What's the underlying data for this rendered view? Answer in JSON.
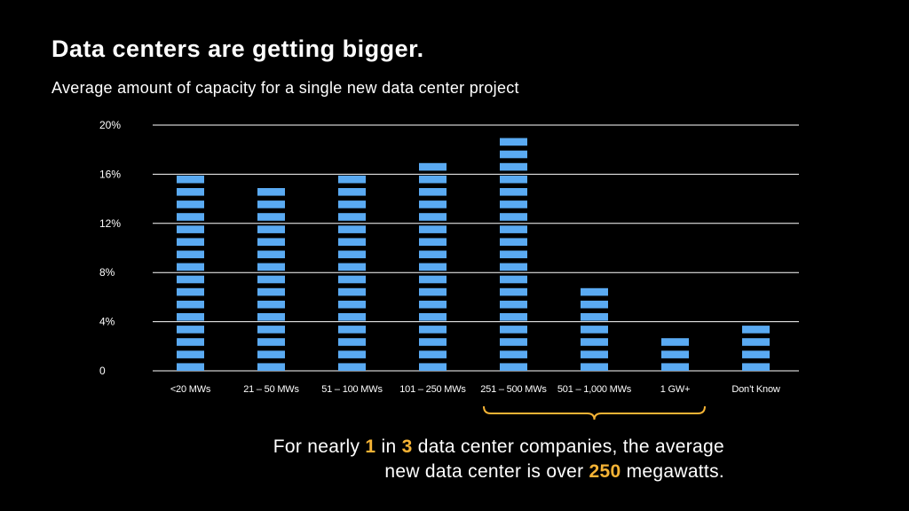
{
  "title": "Data centers are getting bigger.",
  "subtitle": "Average amount of capacity for a single new data center project",
  "colors": {
    "background": "#000000",
    "bar": "#5aaaf2",
    "gridline": "#ffffff",
    "highlight": "#f5b335",
    "text": "#ffffff"
  },
  "chart_data": {
    "type": "bar",
    "categories": [
      "<20 MWs",
      "21 – 50 MWs",
      "51 – 100 MWs",
      "101 – 250 MWs",
      "251 – 500 MWs",
      "501 – 1,000 MWs",
      "1 GW+",
      "Don’t Know"
    ],
    "values": [
      16,
      15,
      16,
      17,
      19,
      7.5,
      3.5,
      4.5
    ],
    "title": "",
    "xlabel": "",
    "ylabel": "",
    "ylim": [
      0,
      20
    ],
    "yticks": [
      0,
      4,
      8,
      12,
      16,
      20
    ],
    "ytick_labels": [
      "0",
      "4%",
      "8%",
      "12%",
      "16%",
      "20%"
    ],
    "grid": true,
    "bar_style": "segmented",
    "bracket_over": [
      "251 – 500 MWs",
      "501 – 1,000 MWs",
      "1 GW+"
    ]
  },
  "callout": {
    "line1_pre": "For nearly ",
    "line1_num1": "1",
    "line1_mid": " in ",
    "line1_num2": "3",
    "line1_post": " data center companies, the average",
    "line2_pre": "new data center is over ",
    "line2_num": "250",
    "line2_post": " megawatts."
  }
}
